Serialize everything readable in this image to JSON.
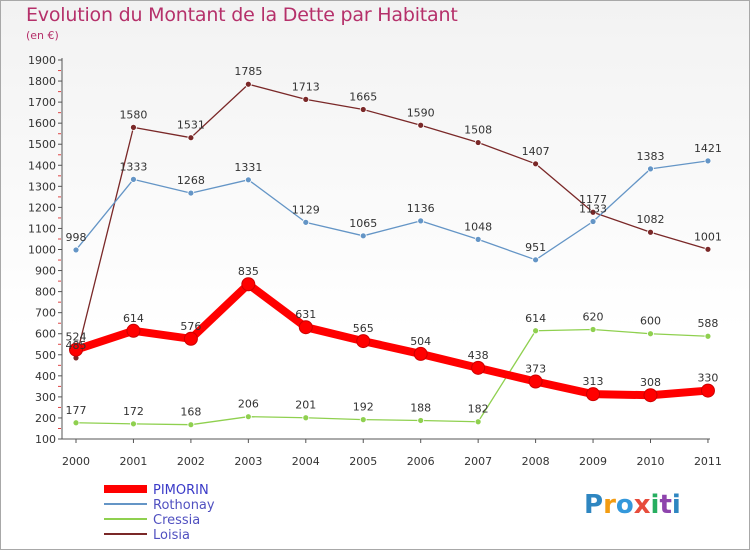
{
  "chart_data": {
    "type": "line",
    "title": "Evolution du Montant de la Dette par Habitant",
    "subtitle": "(en €)",
    "categories": [
      "2000",
      "2001",
      "2002",
      "2003",
      "2004",
      "2005",
      "2006",
      "2007",
      "2008",
      "2009",
      "2010",
      "2011"
    ],
    "y_ticks": [
      100,
      200,
      300,
      400,
      500,
      600,
      700,
      800,
      900,
      1000,
      1100,
      1200,
      1300,
      1400,
      1500,
      1600,
      1700,
      1800,
      1900
    ],
    "ylim": [
      100,
      1900
    ],
    "grid": false,
    "legend_position": "bottom-left",
    "series": [
      {
        "name": "PIMORIN",
        "color": "#ff0000",
        "values": [
          524,
          614,
          576,
          835,
          631,
          565,
          504,
          438,
          373,
          313,
          308,
          330
        ]
      },
      {
        "name": "Rothonay",
        "color": "#6495c6",
        "values": [
          998,
          1333,
          1268,
          1331,
          1129,
          1065,
          1136,
          1048,
          951,
          1133,
          1383,
          1421
        ]
      },
      {
        "name": "Cressia",
        "color": "#8fd04f",
        "values": [
          177,
          172,
          168,
          206,
          201,
          192,
          188,
          182,
          614,
          620,
          600,
          588
        ]
      },
      {
        "name": "Loisia",
        "color": "#7a2828",
        "values": [
          485,
          1580,
          1531,
          1785,
          1713,
          1665,
          1590,
          1508,
          1407,
          1177,
          1082,
          1001
        ]
      }
    ]
  },
  "logo": {
    "text": "Proxiti"
  }
}
